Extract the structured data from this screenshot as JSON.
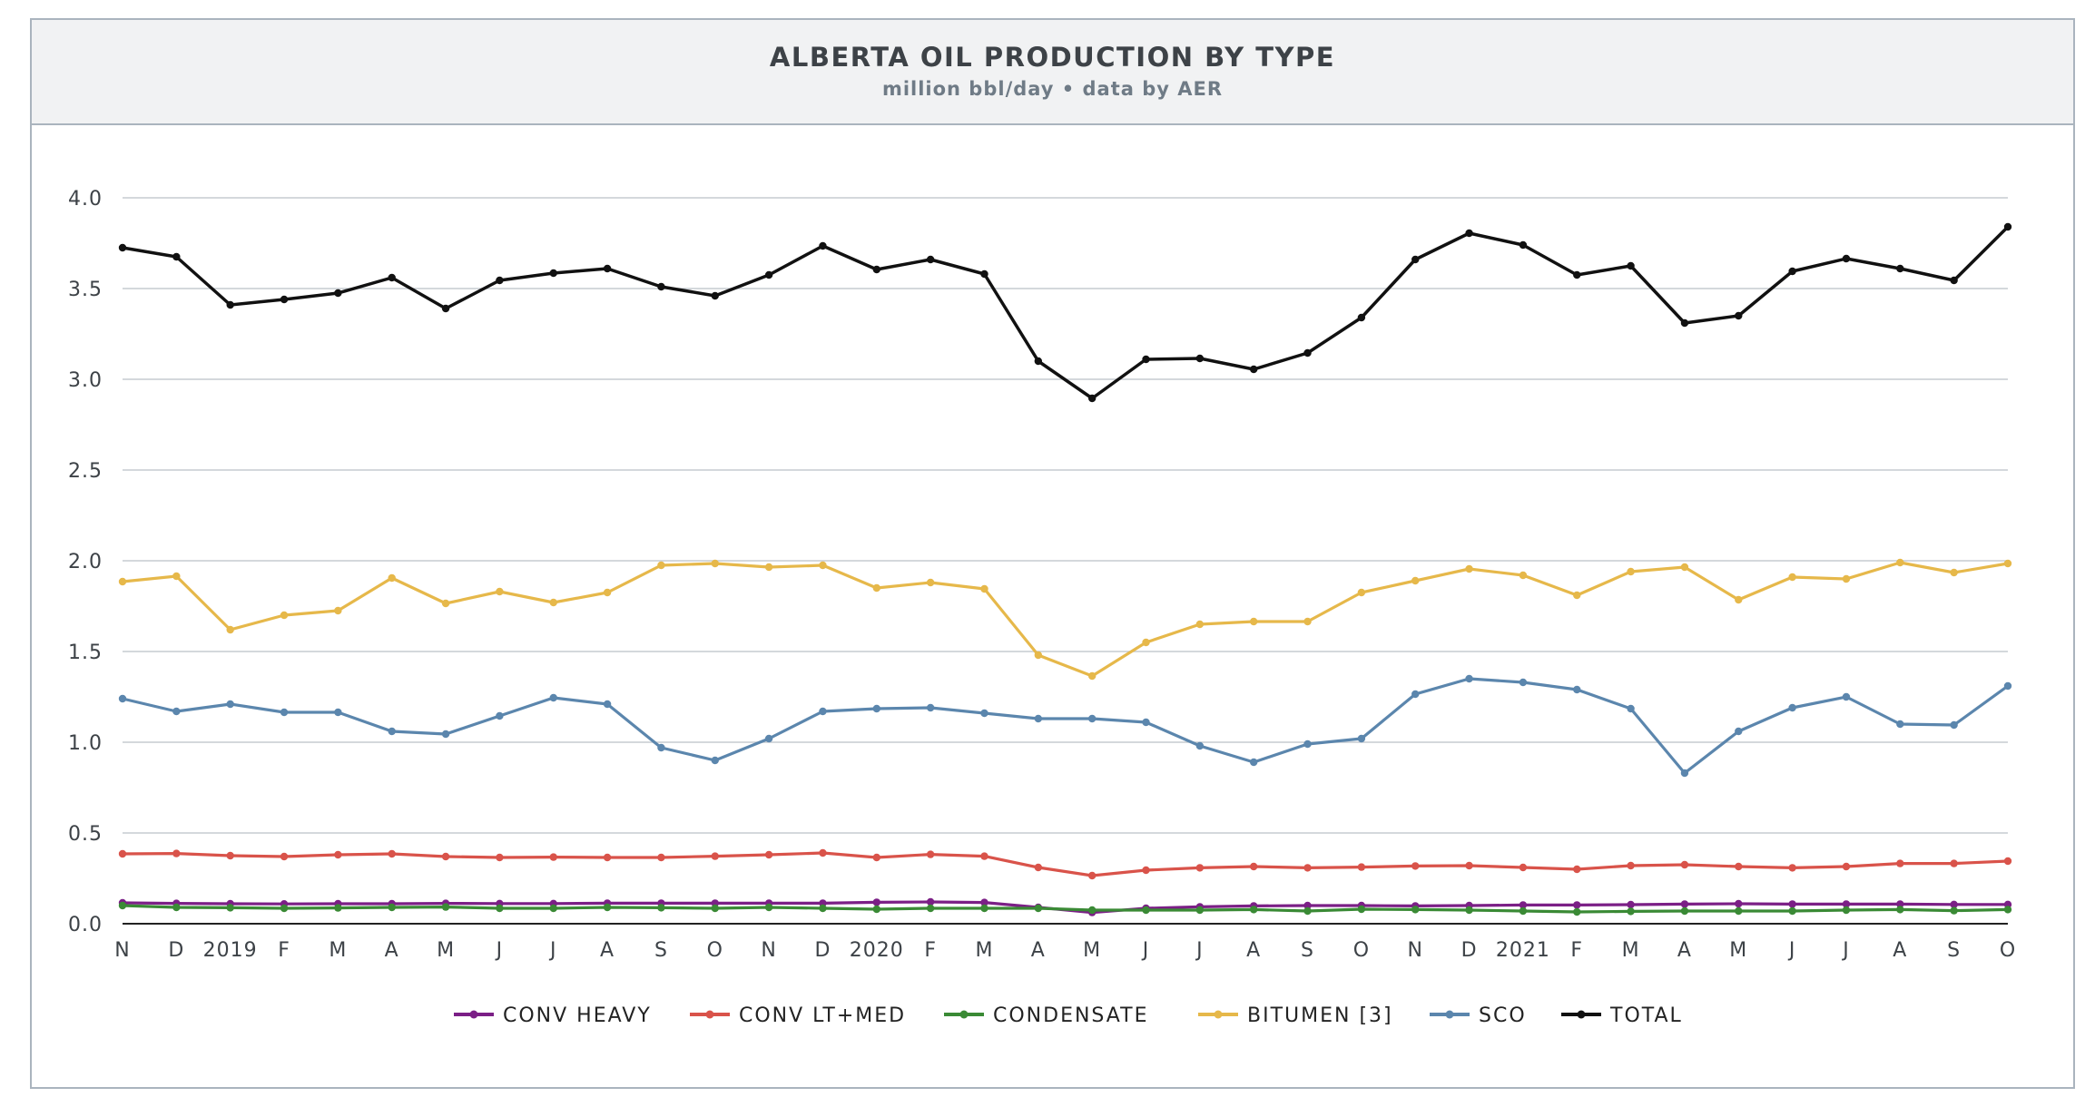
{
  "header": {
    "title": "ALBERTA OIL PRODUCTION BY TYPE",
    "subtitle": "million bbl/day • data by AER"
  },
  "chart_data": {
    "type": "line",
    "title": "ALBERTA OIL PRODUCTION BY TYPE",
    "subtitle": "million bbl/day • data by AER",
    "xlabel": "",
    "ylabel": "",
    "ylim": [
      0,
      4.0
    ],
    "y_ticks": [
      "0.0",
      "0.5",
      "1.0",
      "1.5",
      "2.0",
      "2.5",
      "3.0",
      "3.5",
      "4.0"
    ],
    "y_tick_values": [
      0,
      0.5,
      1.0,
      1.5,
      2.0,
      2.5,
      3.0,
      3.5,
      4.0
    ],
    "x_tick_labels": [
      "N",
      "D",
      "2019",
      "F",
      "M",
      "A",
      "M",
      "J",
      "J",
      "A",
      "S",
      "O",
      "N",
      "D",
      "2020",
      "F",
      "M",
      "A",
      "M",
      "J",
      "J",
      "A",
      "S",
      "O",
      "N",
      "D",
      "2021",
      "F",
      "M",
      "A",
      "M",
      "J",
      "J",
      "A",
      "S",
      "O"
    ],
    "grid": true,
    "legend_position": "bottom",
    "series": [
      {
        "name": "CONV HEAVY",
        "color": "#7b1f86",
        "values": [
          0.115,
          0.112,
          0.11,
          0.109,
          0.11,
          0.11,
          0.112,
          0.111,
          0.111,
          0.113,
          0.113,
          0.113,
          0.113,
          0.113,
          0.118,
          0.12,
          0.117,
          0.09,
          0.062,
          0.085,
          0.093,
          0.098,
          0.1,
          0.1,
          0.098,
          0.1,
          0.103,
          0.103,
          0.105,
          0.108,
          0.11,
          0.108,
          0.108,
          0.108,
          0.106,
          0.106
        ]
      },
      {
        "name": "CONV LT+MED",
        "color": "#d9534a",
        "values": [
          0.385,
          0.387,
          0.375,
          0.37,
          0.38,
          0.385,
          0.37,
          0.365,
          0.367,
          0.365,
          0.365,
          0.372,
          0.38,
          0.39,
          0.365,
          0.382,
          0.372,
          0.31,
          0.265,
          0.295,
          0.308,
          0.315,
          0.308,
          0.312,
          0.318,
          0.32,
          0.31,
          0.3,
          0.32,
          0.325,
          0.315,
          0.308,
          0.315,
          0.332,
          0.332,
          0.345
        ]
      },
      {
        "name": "CONDENSATE",
        "color": "#3a8a35",
        "values": [
          0.1,
          0.09,
          0.088,
          0.085,
          0.087,
          0.09,
          0.092,
          0.085,
          0.085,
          0.09,
          0.088,
          0.085,
          0.09,
          0.085,
          0.08,
          0.085,
          0.085,
          0.085,
          0.075,
          0.075,
          0.075,
          0.078,
          0.07,
          0.08,
          0.078,
          0.075,
          0.07,
          0.065,
          0.068,
          0.07,
          0.07,
          0.07,
          0.075,
          0.078,
          0.072,
          0.078
        ]
      },
      {
        "name": "BITUMEN [3]",
        "color": "#e6b84a",
        "values": [
          1.885,
          1.915,
          1.62,
          1.7,
          1.725,
          1.905,
          1.765,
          1.83,
          1.77,
          1.825,
          1.975,
          1.985,
          1.965,
          1.975,
          1.85,
          1.88,
          1.845,
          1.48,
          1.365,
          1.55,
          1.65,
          1.665,
          1.665,
          1.825,
          1.89,
          1.955,
          1.92,
          1.81,
          1.94,
          1.965,
          1.785,
          1.91,
          1.9,
          1.99,
          1.935,
          1.985
        ]
      },
      {
        "name": "SCO",
        "color": "#5b86ad",
        "values": [
          1.24,
          1.17,
          1.21,
          1.165,
          1.165,
          1.06,
          1.045,
          1.145,
          1.245,
          1.21,
          0.97,
          0.9,
          1.02,
          1.17,
          1.185,
          1.19,
          1.16,
          1.13,
          1.13,
          1.11,
          0.98,
          0.89,
          0.99,
          1.02,
          1.265,
          1.35,
          1.33,
          1.29,
          1.185,
          0.83,
          1.06,
          1.19,
          1.25,
          1.1,
          1.095,
          1.31
        ]
      },
      {
        "name": "TOTAL",
        "color": "#111111",
        "values": [
          3.725,
          3.675,
          3.41,
          3.44,
          3.475,
          3.56,
          3.39,
          3.545,
          3.585,
          3.61,
          3.51,
          3.46,
          3.575,
          3.735,
          3.605,
          3.66,
          3.58,
          3.1,
          2.895,
          3.11,
          3.115,
          3.055,
          3.145,
          3.34,
          3.66,
          3.805,
          3.74,
          3.575,
          3.625,
          3.31,
          3.35,
          3.595,
          3.665,
          3.61,
          3.545,
          3.84
        ]
      }
    ]
  }
}
